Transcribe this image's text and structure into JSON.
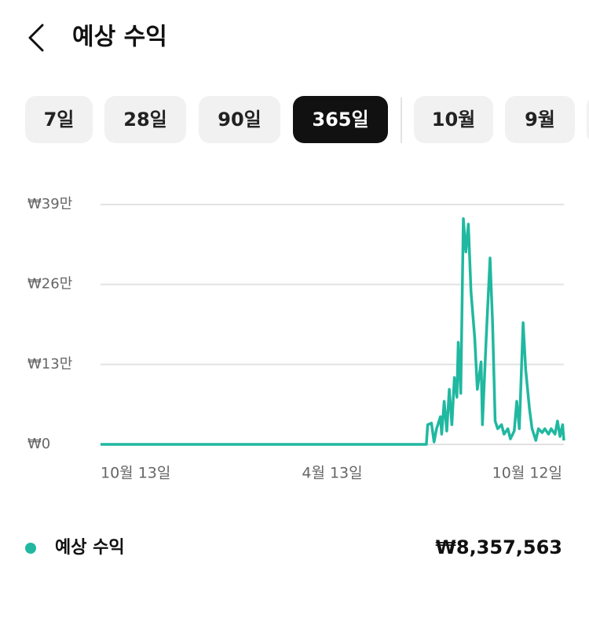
{
  "header": {
    "title": "예상 수익"
  },
  "tabs": [
    "7일",
    "28일",
    "90일",
    "365일",
    "10월",
    "9월"
  ],
  "active_tab": 3,
  "chart_data": {
    "type": "line",
    "x": [
      0,
      256,
      257,
      260,
      262,
      264,
      267,
      268,
      270,
      272,
      274,
      276,
      278,
      280,
      281,
      283,
      285,
      287,
      289,
      291,
      294,
      296,
      299,
      300,
      303,
      306,
      308,
      310,
      312,
      315,
      317,
      320,
      322,
      325,
      327,
      329,
      332,
      334,
      337,
      339,
      342,
      344,
      347,
      349,
      352,
      354,
      357,
      359,
      361,
      363,
      364
    ],
    "series": [
      {
        "name": "예상 수익",
        "color": "#20b8a0",
        "values": [
          0,
          0,
          32000,
          34500,
          4000,
          25500,
          45000,
          16600,
          70000,
          21700,
          89500,
          32000,
          108700,
          76700,
          166000,
          83000,
          367000,
          313000,
          358000,
          249000,
          172600,
          89500,
          134000,
          32000,
          172600,
          303000,
          198000,
          38000,
          25500,
          32000,
          16600,
          25500,
          9000,
          21700,
          70000,
          25500,
          198000,
          121500,
          57500,
          25500,
          6400,
          25500,
          19200,
          25500,
          16600,
          25500,
          16600,
          38000,
          12800,
          32000,
          6400
        ]
      }
    ],
    "xlim": [
      0,
      364
    ],
    "xticks": [
      {
        "value": 0,
        "label": "10월 13일"
      },
      {
        "value": 182,
        "label": "4월 13일"
      },
      {
        "value": 364,
        "label": "10월 12일"
      }
    ],
    "ylim": [
      0,
      390000
    ],
    "yticks": [
      {
        "value": 0,
        "label": "₩0"
      },
      {
        "value": 130000,
        "label": "₩13만"
      },
      {
        "value": 260000,
        "label": "₩26만"
      },
      {
        "value": 390000,
        "label": "₩39만"
      }
    ],
    "grid": true
  },
  "total": "₩8,357,563"
}
